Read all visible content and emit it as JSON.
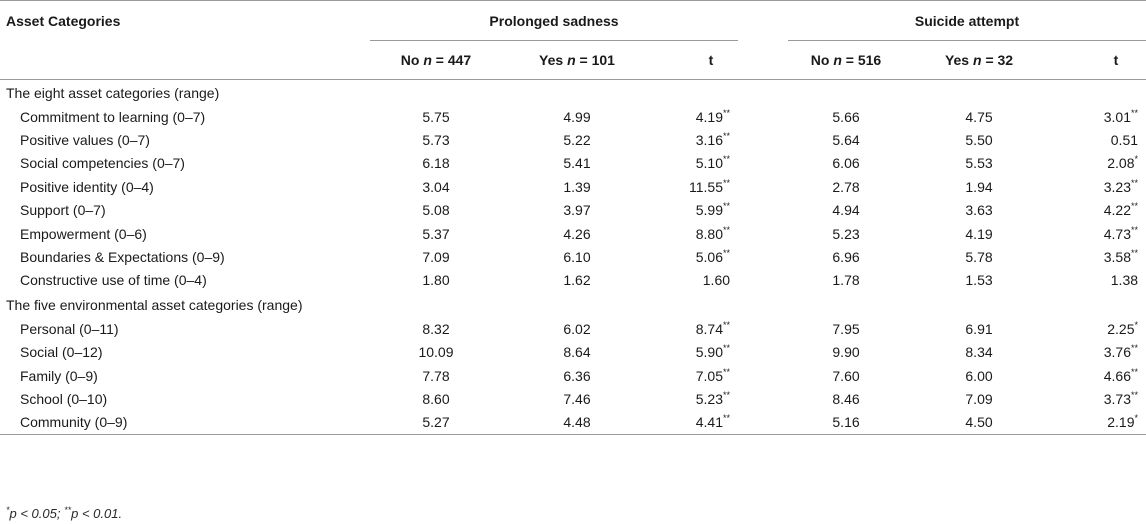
{
  "table": {
    "stub_header": "Asset Categories",
    "groups": [
      "Prolonged sadness",
      "Suicide attempt"
    ],
    "subheaders": {
      "g1_no": "No",
      "g1_no_n": "n",
      "g1_no_val": "= 447",
      "g1_yes": "Yes",
      "g1_yes_n": "n",
      "g1_yes_val": "= 101",
      "g1_t": "t",
      "g2_no": "No",
      "g2_no_n": "n",
      "g2_no_val": "= 516",
      "g2_yes": "Yes",
      "g2_yes_n": "n",
      "g2_yes_val": "= 32",
      "g2_t": "t"
    },
    "sections": [
      {
        "title": "The eight asset categories (range)",
        "rows": [
          {
            "label": "Commitment to learning (0–7)",
            "ps_no": "5.75",
            "ps_yes": "4.99",
            "ps_t": "4.19",
            "ps_sig": "**",
            "sa_no": "5.66",
            "sa_yes": "4.75",
            "sa_t": "3.01",
            "sa_sig": "**"
          },
          {
            "label": "Positive values (0–7)",
            "ps_no": "5.73",
            "ps_yes": "5.22",
            "ps_t": "3.16",
            "ps_sig": "**",
            "sa_no": "5.64",
            "sa_yes": "5.50",
            "sa_t": "0.51",
            "sa_sig": ""
          },
          {
            "label": "Social competencies (0–7)",
            "ps_no": "6.18",
            "ps_yes": "5.41",
            "ps_t": "5.10",
            "ps_sig": "**",
            "sa_no": "6.06",
            "sa_yes": "5.53",
            "sa_t": "2.08",
            "sa_sig": "*"
          },
          {
            "label": "Positive identity (0–4)",
            "ps_no": "3.04",
            "ps_yes": "1.39",
            "ps_t": "11.55",
            "ps_sig": "**",
            "sa_no": "2.78",
            "sa_yes": "1.94",
            "sa_t": "3.23",
            "sa_sig": "**"
          },
          {
            "label": "Support (0–7)",
            "ps_no": "5.08",
            "ps_yes": "3.97",
            "ps_t": "5.99",
            "ps_sig": "**",
            "sa_no": "4.94",
            "sa_yes": "3.63",
            "sa_t": "4.22",
            "sa_sig": "**"
          },
          {
            "label": "Empowerment (0–6)",
            "ps_no": "5.37",
            "ps_yes": "4.26",
            "ps_t": "8.80",
            "ps_sig": "**",
            "sa_no": "5.23",
            "sa_yes": "4.19",
            "sa_t": "4.73",
            "sa_sig": "**"
          },
          {
            "label": "Boundaries & Expectations (0–9)",
            "ps_no": "7.09",
            "ps_yes": "6.10",
            "ps_t": "5.06",
            "ps_sig": "**",
            "sa_no": "6.96",
            "sa_yes": "5.78",
            "sa_t": "3.58",
            "sa_sig": "**"
          },
          {
            "label": "Constructive use of time (0–4)",
            "ps_no": "1.80",
            "ps_yes": "1.62",
            "ps_t": "1.60",
            "ps_sig": "",
            "sa_no": "1.78",
            "sa_yes": "1.53",
            "sa_t": "1.38",
            "sa_sig": ""
          }
        ]
      },
      {
        "title": "The five environmental asset categories (range)",
        "rows": [
          {
            "label": "Personal (0–11)",
            "ps_no": "8.32",
            "ps_yes": "6.02",
            "ps_t": "8.74",
            "ps_sig": "**",
            "sa_no": "7.95",
            "sa_yes": "6.91",
            "sa_t": "2.25",
            "sa_sig": "*"
          },
          {
            "label": "Social (0–12)",
            "ps_no": "10.09",
            "ps_yes": "8.64",
            "ps_t": "5.90",
            "ps_sig": "**",
            "sa_no": "9.90",
            "sa_yes": "8.34",
            "sa_t": "3.76",
            "sa_sig": "**"
          },
          {
            "label": "Family (0–9)",
            "ps_no": "7.78",
            "ps_yes": "6.36",
            "ps_t": "7.05",
            "ps_sig": "**",
            "sa_no": "7.60",
            "sa_yes": "6.00",
            "sa_t": "4.66",
            "sa_sig": "**"
          },
          {
            "label": "School (0–10)",
            "ps_no": "8.60",
            "ps_yes": "7.46",
            "ps_t": "5.23",
            "ps_sig": "**",
            "sa_no": "8.46",
            "sa_yes": "7.09",
            "sa_t": "3.73",
            "sa_sig": "**"
          },
          {
            "label": "Community (0–9)",
            "ps_no": "5.27",
            "ps_yes": "4.48",
            "ps_t": "4.41",
            "ps_sig": "**",
            "sa_no": "5.16",
            "sa_yes": "4.50",
            "sa_t": "2.19",
            "sa_sig": "*"
          }
        ]
      }
    ],
    "footnote": {
      "s1": "*",
      "p1": "p < 0.05; ",
      "s2": "**",
      "p2": "p < 0.01."
    }
  }
}
